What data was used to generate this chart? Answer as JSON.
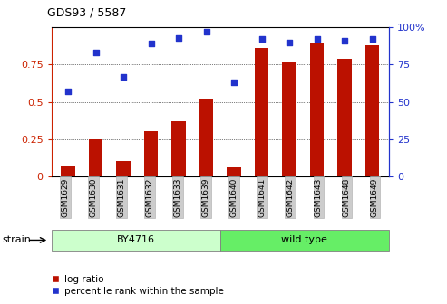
{
  "title": "GDS93 / 5587",
  "samples": [
    "GSM1629",
    "GSM1630",
    "GSM1631",
    "GSM1632",
    "GSM1633",
    "GSM1639",
    "GSM1640",
    "GSM1641",
    "GSM1642",
    "GSM1643",
    "GSM1648",
    "GSM1649"
  ],
  "log_ratio": [
    0.07,
    0.25,
    0.1,
    0.3,
    0.37,
    0.52,
    0.06,
    0.86,
    0.77,
    0.9,
    0.79,
    0.88
  ],
  "percentile_rank": [
    57,
    83,
    67,
    89,
    93,
    97,
    63,
    92,
    90,
    92,
    91,
    92
  ],
  "bar_color": "#bb1100",
  "dot_color": "#2233cc",
  "by4716_color": "#ccffcc",
  "wild_type_color": "#66ee66",
  "strain_label": "strain",
  "by4716_label": "BY4716",
  "wild_type_label": "wild type",
  "legend_log_ratio": "log ratio",
  "legend_percentile": "percentile rank within the sample",
  "ylim_left": [
    0,
    1.0
  ],
  "ylim_right": [
    0,
    100
  ],
  "yticks_left": [
    0,
    0.25,
    0.5,
    0.75
  ],
  "ytick_labels_left": [
    "0",
    "0.25",
    "0.5",
    "0.75"
  ],
  "yticks_right": [
    0,
    25,
    50,
    75,
    100
  ],
  "ytick_labels_right": [
    "0",
    "25",
    "50",
    "75",
    "100%"
  ],
  "left_axis_color": "#cc2200",
  "right_axis_color": "#2233cc",
  "background_color": "#ffffff",
  "tick_label_bg": "#cccccc",
  "n_by4716": 6
}
